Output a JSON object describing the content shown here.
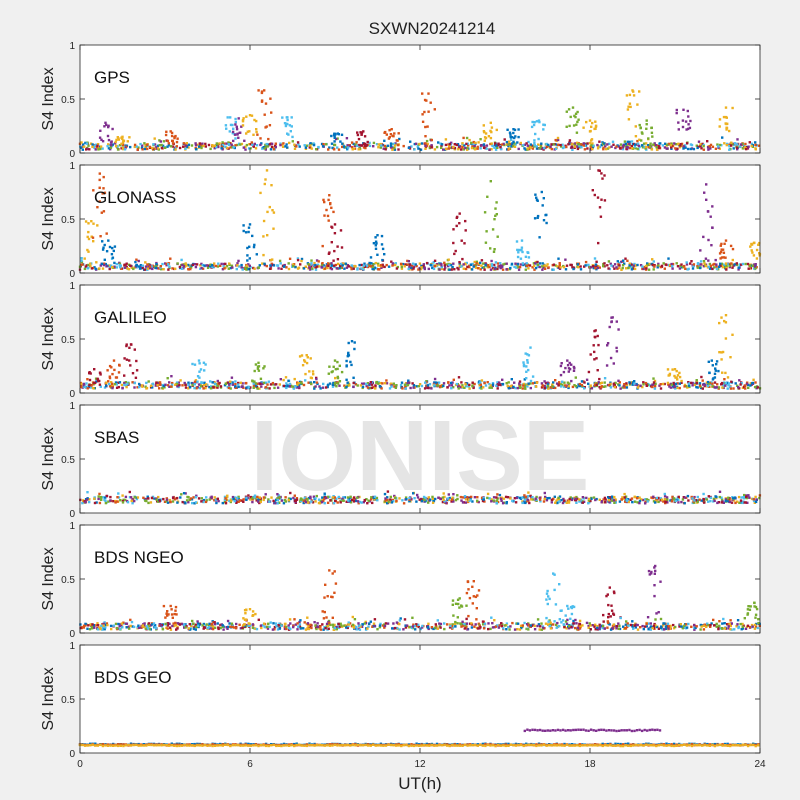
{
  "chart_data": {
    "type": "scatter",
    "title": "SXWN20241214",
    "watermark": "IONISE",
    "xlabel": "UT(h)",
    "ylabel": "S4 Index",
    "xlim": [
      0,
      24
    ],
    "xticks": [
      0,
      6,
      12,
      18,
      24
    ],
    "ylim": [
      0,
      1
    ],
    "yticks": [
      0,
      0.5,
      1
    ],
    "ytick_labels": [
      "0",
      "0.5",
      "1"
    ],
    "grid": false,
    "series_colors": [
      "#0072BD",
      "#D95319",
      "#EDB120",
      "#7E2F8E",
      "#77AC30",
      "#4DBEEE",
      "#A2142F"
    ],
    "panels": [
      {
        "label": "GPS",
        "baseline": 0.06,
        "spikes": [
          {
            "x": 0.9,
            "y": 0.28,
            "c": 3
          },
          {
            "x": 1.5,
            "y": 0.15,
            "c": 2
          },
          {
            "x": 3.2,
            "y": 0.2,
            "c": 1
          },
          {
            "x": 5.3,
            "y": 0.33,
            "c": 5
          },
          {
            "x": 5.6,
            "y": 0.32,
            "c": 3
          },
          {
            "x": 6.0,
            "y": 0.35,
            "c": 2
          },
          {
            "x": 6.5,
            "y": 0.58,
            "c": 1
          },
          {
            "x": 7.3,
            "y": 0.33,
            "c": 5
          },
          {
            "x": 9.1,
            "y": 0.18,
            "c": 0
          },
          {
            "x": 10.0,
            "y": 0.2,
            "c": 6
          },
          {
            "x": 11.0,
            "y": 0.22,
            "c": 1
          },
          {
            "x": 12.3,
            "y": 0.55,
            "c": 1
          },
          {
            "x": 14.5,
            "y": 0.28,
            "c": 2
          },
          {
            "x": 15.3,
            "y": 0.22,
            "c": 0
          },
          {
            "x": 16.2,
            "y": 0.3,
            "c": 5
          },
          {
            "x": 17.4,
            "y": 0.42,
            "c": 4
          },
          {
            "x": 18.0,
            "y": 0.3,
            "c": 2
          },
          {
            "x": 19.5,
            "y": 0.58,
            "c": 2
          },
          {
            "x": 20.0,
            "y": 0.3,
            "c": 4
          },
          {
            "x": 21.3,
            "y": 0.4,
            "c": 3
          },
          {
            "x": 22.8,
            "y": 0.42,
            "c": 2
          }
        ]
      },
      {
        "label": "GLONASS",
        "baseline": 0.06,
        "spikes": [
          {
            "x": 0.4,
            "y": 0.48,
            "c": 2
          },
          {
            "x": 0.7,
            "y": 0.92,
            "c": 1
          },
          {
            "x": 1.0,
            "y": 0.3,
            "c": 0
          },
          {
            "x": 6.0,
            "y": 0.45,
            "c": 0
          },
          {
            "x": 6.6,
            "y": 0.95,
            "c": 2
          },
          {
            "x": 8.8,
            "y": 0.72,
            "c": 1
          },
          {
            "x": 9.0,
            "y": 0.45,
            "c": 6
          },
          {
            "x": 10.5,
            "y": 0.35,
            "c": 0
          },
          {
            "x": 13.4,
            "y": 0.55,
            "c": 6
          },
          {
            "x": 14.5,
            "y": 0.85,
            "c": 4
          },
          {
            "x": 15.6,
            "y": 0.3,
            "c": 5
          },
          {
            "x": 16.3,
            "y": 0.75,
            "c": 0
          },
          {
            "x": 18.3,
            "y": 0.95,
            "c": 6
          },
          {
            "x": 22.1,
            "y": 0.82,
            "c": 3
          },
          {
            "x": 22.8,
            "y": 0.3,
            "c": 1
          },
          {
            "x": 23.8,
            "y": 0.28,
            "c": 2
          }
        ]
      },
      {
        "label": "GALILEO",
        "baseline": 0.07,
        "spikes": [
          {
            "x": 0.5,
            "y": 0.22,
            "c": 6
          },
          {
            "x": 1.2,
            "y": 0.3,
            "c": 1
          },
          {
            "x": 1.8,
            "y": 0.45,
            "c": 6
          },
          {
            "x": 4.2,
            "y": 0.3,
            "c": 5
          },
          {
            "x": 6.3,
            "y": 0.28,
            "c": 4
          },
          {
            "x": 8.0,
            "y": 0.35,
            "c": 2
          },
          {
            "x": 9.0,
            "y": 0.3,
            "c": 4
          },
          {
            "x": 9.6,
            "y": 0.48,
            "c": 0
          },
          {
            "x": 15.9,
            "y": 0.42,
            "c": 5
          },
          {
            "x": 17.2,
            "y": 0.3,
            "c": 3
          },
          {
            "x": 18.2,
            "y": 0.58,
            "c": 6
          },
          {
            "x": 18.8,
            "y": 0.7,
            "c": 3
          },
          {
            "x": 21.0,
            "y": 0.22,
            "c": 2
          },
          {
            "x": 22.3,
            "y": 0.3,
            "c": 0
          },
          {
            "x": 22.8,
            "y": 0.72,
            "c": 2
          }
        ]
      },
      {
        "label": "SBAS",
        "baseline": 0.12,
        "spikes": []
      },
      {
        "label": "BDS NGEO",
        "baseline": 0.06,
        "spikes": [
          {
            "x": 3.2,
            "y": 0.25,
            "c": 1
          },
          {
            "x": 6.0,
            "y": 0.22,
            "c": 2
          },
          {
            "x": 8.8,
            "y": 0.58,
            "c": 1
          },
          {
            "x": 13.4,
            "y": 0.32,
            "c": 4
          },
          {
            "x": 13.9,
            "y": 0.48,
            "c": 1
          },
          {
            "x": 16.7,
            "y": 0.55,
            "c": 5
          },
          {
            "x": 17.2,
            "y": 0.25,
            "c": 5
          },
          {
            "x": 18.7,
            "y": 0.42,
            "c": 6
          },
          {
            "x": 20.3,
            "y": 0.62,
            "c": 3
          },
          {
            "x": 23.8,
            "y": 0.28,
            "c": 4
          }
        ]
      },
      {
        "label": "BDS GEO",
        "baseline": 0.08,
        "spikes": [],
        "bands": [
          {
            "y": 0.08,
            "c": 0,
            "x0": 0,
            "x1": 24
          },
          {
            "y": 0.075,
            "c": 1,
            "x0": 0,
            "x1": 24
          },
          {
            "y": 0.07,
            "c": 2,
            "x0": 0,
            "x1": 24
          },
          {
            "y": 0.21,
            "c": 3,
            "x0": 15.7,
            "x1": 20.5
          }
        ]
      }
    ]
  }
}
